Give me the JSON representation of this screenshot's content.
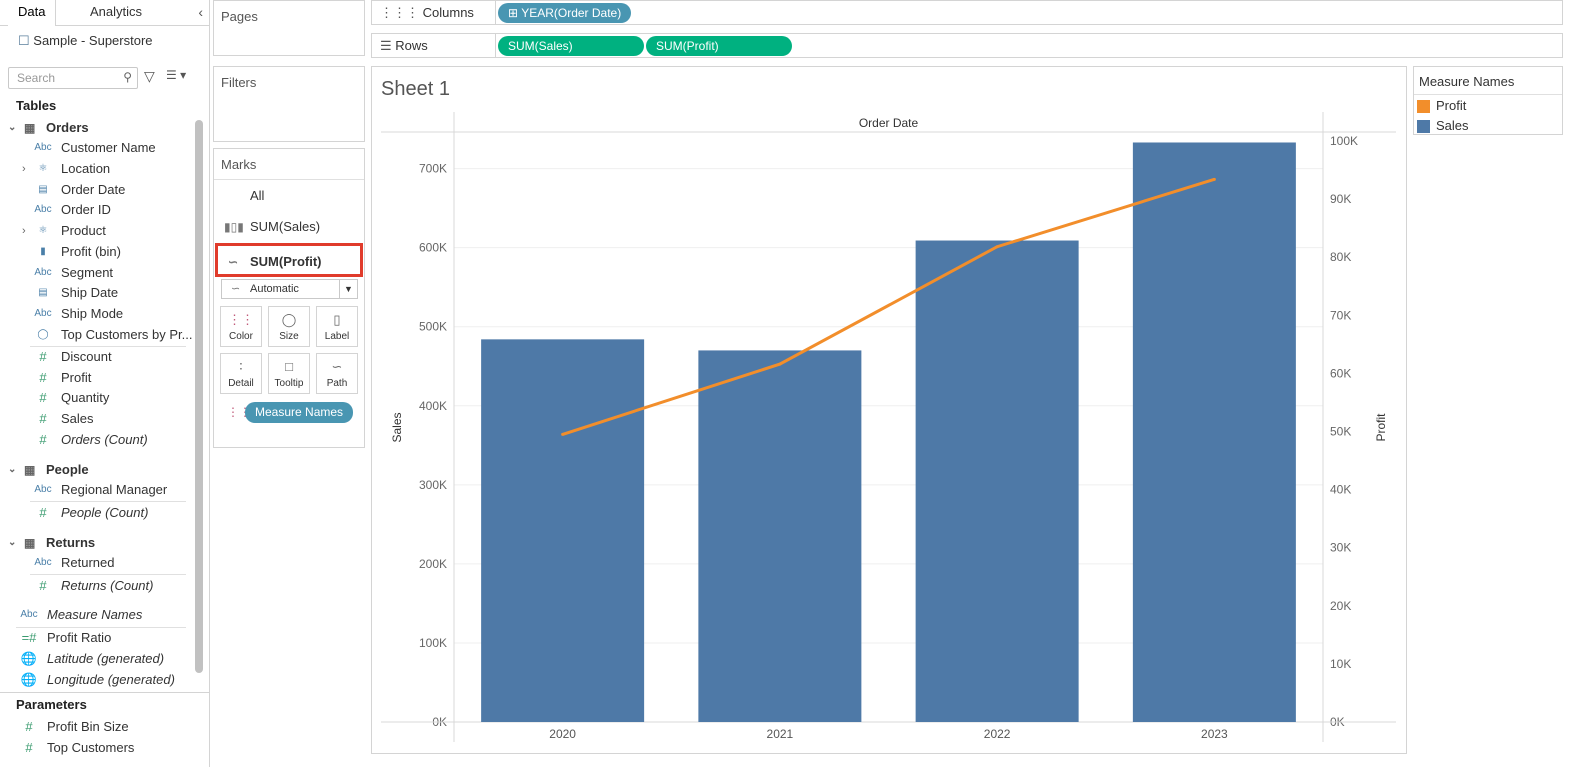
{
  "left_panel": {
    "tabs": {
      "data": "Data",
      "analytics": "Analytics"
    },
    "datasource": "Sample - Superstore",
    "search_placeholder": "Search",
    "tables_title": "Tables",
    "orders": {
      "title": "Orders",
      "fields": [
        {
          "label": "Customer Name",
          "icon": "Abc"
        },
        {
          "label": "Location",
          "icon": "hierarchy"
        },
        {
          "label": "Order Date",
          "icon": "calendar"
        },
        {
          "label": "Order ID",
          "icon": "Abc"
        },
        {
          "label": "Product",
          "icon": "hierarchy"
        },
        {
          "label": "Profit (bin)",
          "icon": "bin"
        },
        {
          "label": "Segment",
          "icon": "Abc"
        },
        {
          "label": "Ship Date",
          "icon": "calendar"
        },
        {
          "label": "Ship Mode",
          "icon": "Abc"
        },
        {
          "label": "Top Customers by Pr...",
          "icon": "set"
        },
        {
          "label": "Discount",
          "icon": "#"
        },
        {
          "label": "Profit",
          "icon": "#"
        },
        {
          "label": "Quantity",
          "icon": "#"
        },
        {
          "label": "Sales",
          "icon": "#"
        },
        {
          "label": "Orders (Count)",
          "icon": "#"
        }
      ]
    },
    "people": {
      "title": "People",
      "fields": [
        {
          "label": "Regional Manager",
          "icon": "Abc"
        },
        {
          "label": "People (Count)",
          "icon": "#"
        }
      ]
    },
    "returns": {
      "title": "Returns",
      "fields": [
        {
          "label": "Returned",
          "icon": "Abc"
        },
        {
          "label": "Returns (Count)",
          "icon": "#"
        }
      ]
    },
    "extra_fields": [
      {
        "label": "Measure Names",
        "icon": "Abc"
      },
      {
        "label": "Profit Ratio",
        "icon": "=#"
      },
      {
        "label": "Latitude (generated)",
        "icon": "globe"
      },
      {
        "label": "Longitude (generated)",
        "icon": "globe"
      }
    ],
    "parameters_title": "Parameters",
    "parameters": [
      {
        "label": "Profit Bin Size",
        "icon": "#"
      },
      {
        "label": "Top Customers",
        "icon": "#"
      }
    ]
  },
  "cards": {
    "pages": "Pages",
    "filters": "Filters",
    "marks": "Marks",
    "marks_all": "All",
    "marks_sales": "SUM(Sales)",
    "marks_profit": "SUM(Profit)",
    "mark_type": "Automatic",
    "buttons": {
      "color": "Color",
      "size": "Size",
      "label": "Label",
      "detail": "Detail",
      "tooltip": "Tooltip",
      "path": "Path"
    },
    "measure_names_pill": "Measure Names"
  },
  "shelves": {
    "columns_label": "Columns",
    "columns_pill": "YEAR(Order Date)",
    "rows_label": "Rows",
    "rows_pills": [
      "SUM(Sales)",
      "SUM(Profit)"
    ]
  },
  "legend": {
    "title": "Measure Names",
    "items": [
      {
        "name": "Profit",
        "color": "#f28e2b"
      },
      {
        "name": "Sales",
        "color": "#4e79a7"
      }
    ]
  },
  "sheet_title": "Sheet 1",
  "chart_data": {
    "type": "bar",
    "title": "Sheet 1",
    "header": "Order Date",
    "categories": [
      "2020",
      "2021",
      "2022",
      "2023"
    ],
    "series": [
      {
        "name": "Sales",
        "type": "bar",
        "axis": "left",
        "values": [
          484000,
          470000,
          609000,
          733000
        ],
        "color": "#4e79a7"
      },
      {
        "name": "Profit",
        "type": "line",
        "axis": "right",
        "values": [
          49500,
          61600,
          81800,
          93400
        ],
        "color": "#f28e2b"
      }
    ],
    "ylabel": "Sales",
    "y2label": "Profit",
    "ylim": [
      0,
      745000
    ],
    "y2lim": [
      0,
      100000
    ],
    "yticks": [
      0,
      100000,
      200000,
      300000,
      400000,
      500000,
      600000,
      700000
    ],
    "ytick_labels": [
      "0K",
      "100K",
      "200K",
      "300K",
      "400K",
      "500K",
      "600K",
      "700K"
    ],
    "y2ticks": [
      0,
      10000,
      20000,
      30000,
      40000,
      50000,
      60000,
      70000,
      80000,
      90000,
      100000
    ],
    "y2tick_labels": [
      "0K",
      "10K",
      "20K",
      "30K",
      "40K",
      "50K",
      "60K",
      "70K",
      "80K",
      "90K",
      "100K"
    ]
  }
}
